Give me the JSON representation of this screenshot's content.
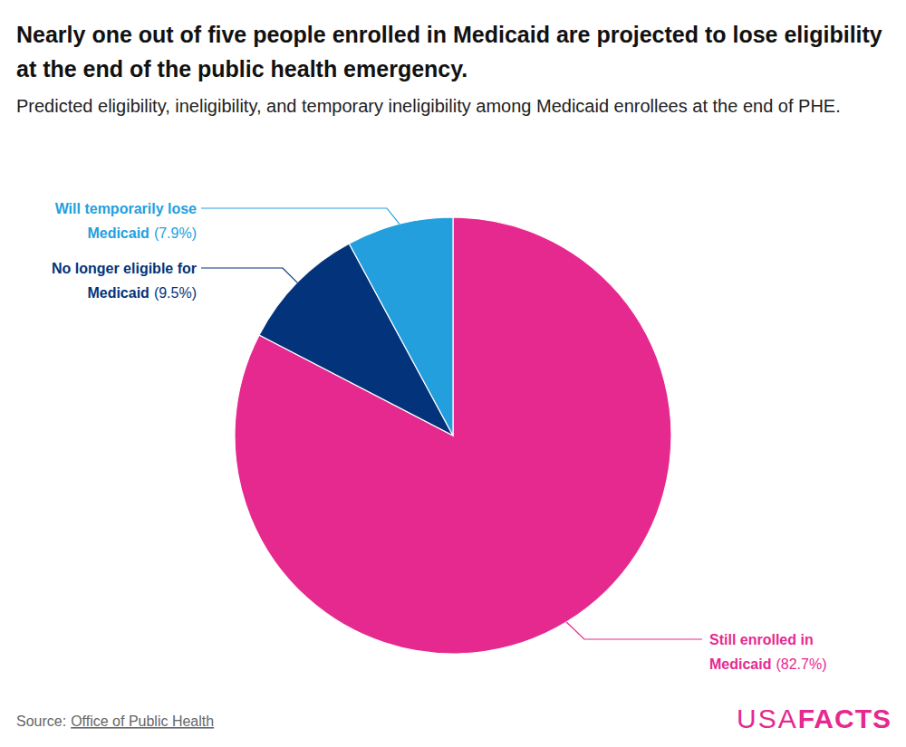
{
  "chart_data": {
    "type": "pie",
    "title": "Nearly one out of five people enrolled in Medicaid are projected to lose eligibility at the end of the public health emergency.",
    "subtitle": "Predicted eligibility, ineligibility, and temporary ineligibility among Medicaid enrollees at the end of PHE.",
    "categories": [
      "Still enrolled in Medicaid",
      "No longer eligible for Medicaid",
      "Will temporarily lose Medicaid"
    ],
    "values": [
      82.7,
      9.5,
      7.9
    ],
    "value_labels": [
      "(82.7%)",
      "(9.5%)",
      "(7.9%)"
    ],
    "colors": [
      "#e6298f",
      "#03337a",
      "#239fdd"
    ],
    "data_labels": true,
    "source_prefix": "Source:",
    "source": "Office of Public Health",
    "brand": [
      "USA",
      "FACTS"
    ]
  }
}
